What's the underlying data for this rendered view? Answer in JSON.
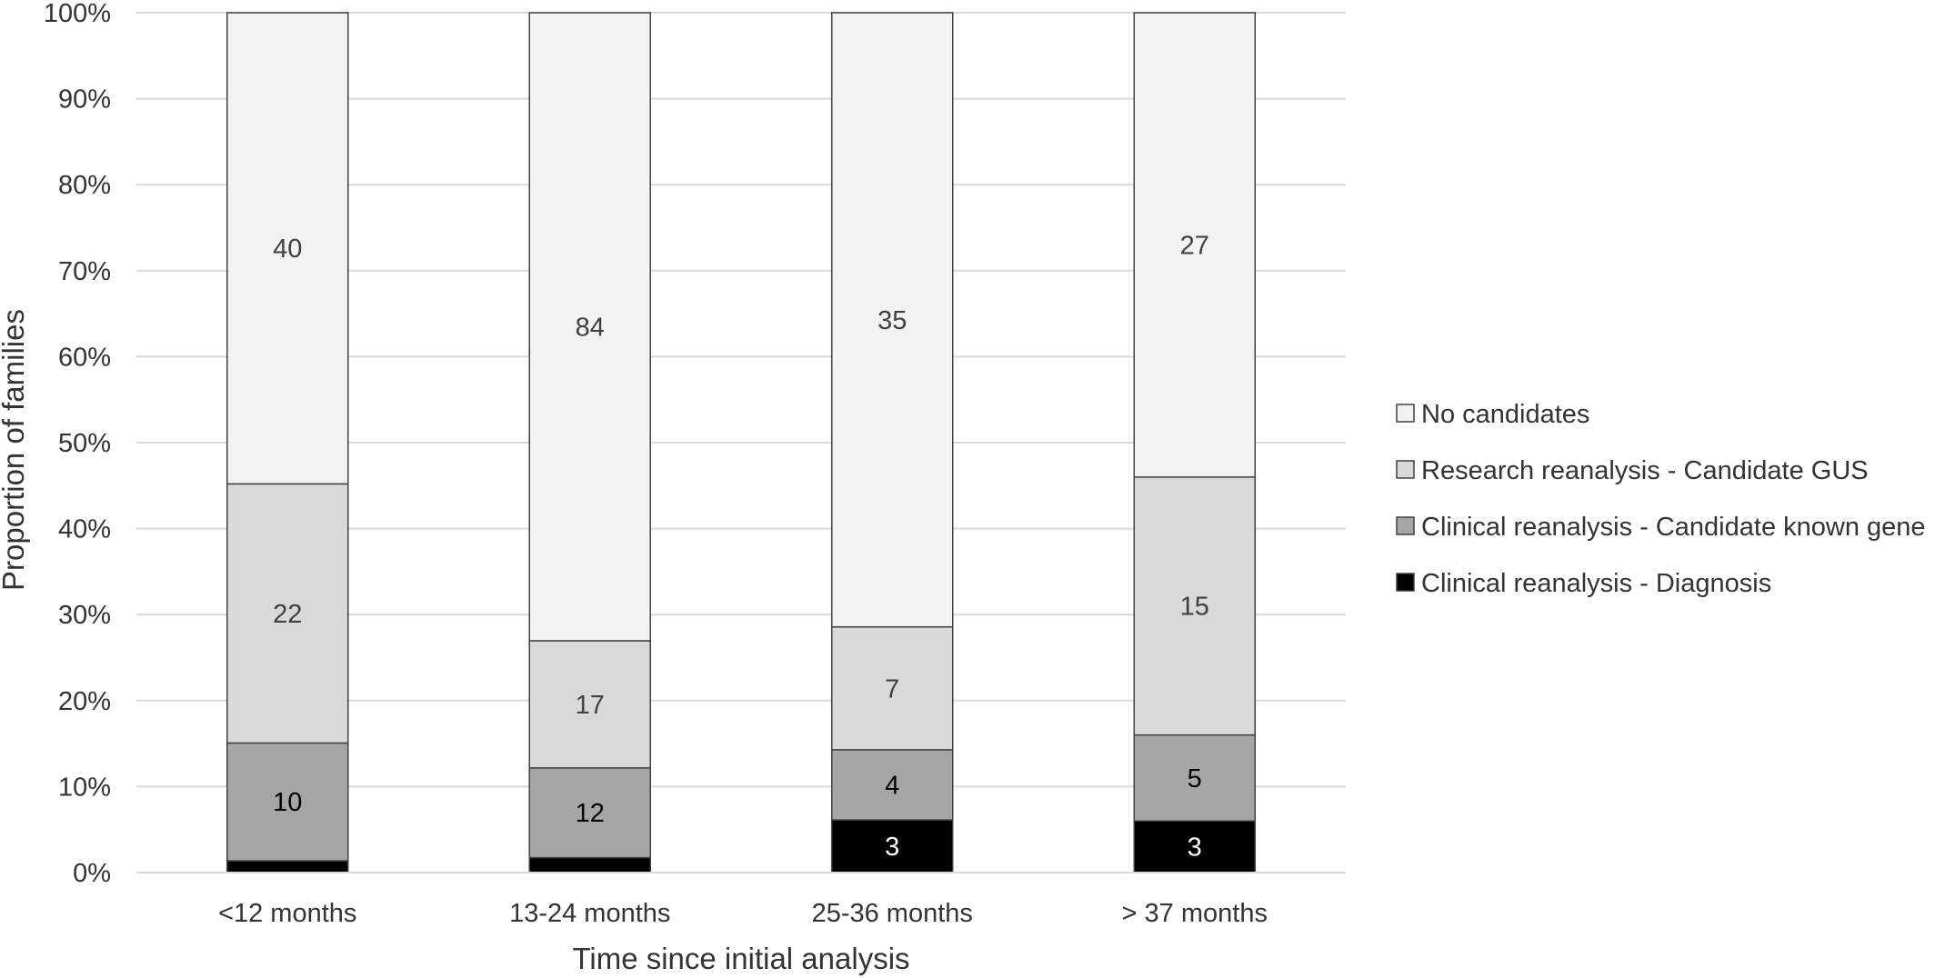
{
  "chart_data": {
    "type": "bar",
    "stacked": true,
    "normalized": true,
    "title": "",
    "xlabel": "Time since initial analysis",
    "ylabel": "Proportion of families",
    "categories": [
      "<12 months",
      "13-24 months",
      "25-36 months",
      "> 37 months"
    ],
    "series": [
      {
        "name": "Clinical reanalysis - Diagnosis",
        "values": [
          1,
          2,
          3,
          3
        ],
        "color": "#000000",
        "label_color": "#ffffff"
      },
      {
        "name": "Clinical reanalysis - Candidate known gene",
        "values": [
          10,
          12,
          4,
          5
        ],
        "color": "#a6a6a6",
        "label_color": "#000000"
      },
      {
        "name": "Research reanalysis - Candidate GUS",
        "values": [
          22,
          17,
          7,
          15
        ],
        "color": "#d9d9d9",
        "label_color": "#404040"
      },
      {
        "name": "No candidates",
        "values": [
          40,
          84,
          35,
          27
        ],
        "color": "#f2f2f2",
        "label_color": "#404040"
      }
    ],
    "ylim": [
      0,
      100
    ],
    "yticks": [
      "0%",
      "10%",
      "20%",
      "30%",
      "40%",
      "50%",
      "60%",
      "70%",
      "80%",
      "90%",
      "100%"
    ],
    "legend_order": [
      "No candidates",
      "Research reanalysis - Candidate GUS",
      "Clinical reanalysis - Candidate known gene",
      "Clinical reanalysis - Diagnosis"
    ],
    "legend_position": "right",
    "grid": true,
    "colors": {
      "gridline": "#d9d9d9",
      "bar_outline": "#404040",
      "text": "#333333"
    }
  }
}
